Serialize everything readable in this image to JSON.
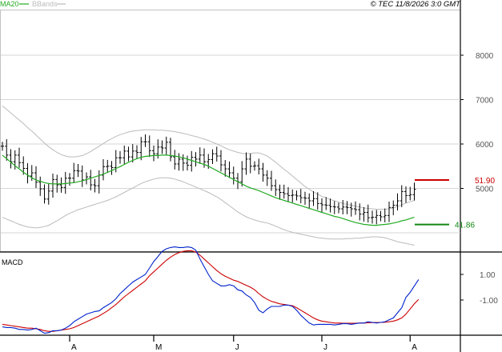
{
  "header": {
    "ma_label": "MA20",
    "bbands_label": "BBands",
    "copyright": "© TEC 11/8/2026 3:0 GMT"
  },
  "colors": {
    "ma": "#22aa22",
    "bbands": "#bbbbbb",
    "price_bar": "#000000",
    "macd_line": "#0022cc",
    "signal_line": "#cc0000",
    "resistance": "#cc0000",
    "support": "#118811",
    "grid": "#c8c8c8",
    "axis": "#000000",
    "tick_text": "#555555"
  },
  "macd_panel": {
    "title": "MACD"
  },
  "chart_data": [
    {
      "type": "ohlc",
      "title": "",
      "xlabel": "",
      "ylabel": "",
      "y_tick_labels": [
        "8000",
        "7000",
        "6000",
        "5000"
      ],
      "y_ticks": [
        80,
        70,
        60,
        50
      ],
      "ylim": [
        37,
        97
      ],
      "grid": true,
      "x_tick_labels": [
        "A",
        "M",
        "J",
        "J",
        "A"
      ],
      "x_tick_index": [
        16,
        36,
        55,
        76,
        97
      ],
      "levels": [
        {
          "label": "51.90",
          "value": 51.9,
          "role": "resistance"
        },
        {
          "label": "41.86",
          "value": 41.86,
          "role": "support"
        }
      ],
      "series": [
        {
          "name": "MA20",
          "kind": "line"
        },
        {
          "name": "BBands",
          "kind": "band"
        },
        {
          "name": "price",
          "kind": "ohlc"
        }
      ],
      "close": [
        59.5,
        57.5,
        56,
        57.5,
        55.8,
        54.5,
        52.8,
        53.5,
        51.4,
        49.9,
        47.6,
        49.4,
        52,
        50.8,
        50.2,
        52.3,
        52.3,
        54,
        53.9,
        51.9,
        52.6,
        50.8,
        50.6,
        53,
        54.9,
        55,
        54.7,
        56.9,
        56.9,
        58.4,
        57.1,
        58.4,
        58.1,
        60.5,
        60.5,
        58.5,
        57.8,
        59.3,
        59.1,
        60.4,
        57.1,
        55.5,
        56.6,
        55.7,
        55.2,
        57,
        56.6,
        57.5,
        56,
        56.5,
        57.8,
        57.3,
        55.3,
        54.4,
        53.5,
        52.3,
        51.5,
        54.4,
        56.6,
        55,
        55.1,
        54.4,
        53,
        52.3,
        50.6,
        49.7,
        49.1,
        48.8,
        48.4,
        48.5,
        48.3,
        47.9,
        47.8,
        47.2,
        47.7,
        46.6,
        46.3,
        46.2,
        45.9,
        45.8,
        45.4,
        45.8,
        45.7,
        45.4,
        45.2,
        44.2,
        44.6,
        43.4,
        43.5,
        43.9,
        43.6,
        43.9,
        45.7,
        46.2,
        47.2,
        49.3,
        48.4,
        48.6,
        49.8
      ],
      "ma20": [
        57.5,
        56.7,
        55.9,
        55.1,
        54.4,
        53.6,
        53.0,
        52.4,
        51.9,
        51.6,
        51.3,
        51.1,
        51.0,
        51.0,
        51.0,
        51.1,
        51.2,
        51.3,
        51.5,
        51.7,
        52.0,
        52.3,
        52.6,
        52.9,
        53.2,
        53.6,
        54.0,
        54.5,
        54.9,
        55.4,
        55.9,
        56.3,
        56.7,
        57.0,
        57.2,
        57.3,
        57.4,
        57.4,
        57.5,
        57.5,
        57.4,
        57.3,
        57.1,
        56.9,
        56.6,
        56.3,
        56.0,
        55.7,
        55.4,
        55.0,
        54.5,
        54.0,
        53.5,
        53.0,
        52.5,
        52.0,
        51.5,
        51.0,
        50.5,
        50.1,
        49.8,
        49.5,
        49.1,
        48.7,
        48.3,
        47.9,
        47.6,
        47.3,
        47.0,
        46.7,
        46.4,
        46.1,
        45.8,
        45.5,
        45.2,
        44.9,
        44.6,
        44.3,
        44.0,
        43.7,
        43.5,
        43.2,
        42.9,
        42.6,
        42.3,
        42.1,
        41.9,
        41.8,
        41.7,
        41.7,
        41.8,
        41.9,
        42.0,
        42.2,
        42.4,
        42.7,
        42.9,
        43.2,
        43.5
      ],
      "bb_upper": [
        68.6,
        67.8,
        67.0,
        66.2,
        65.4,
        64.6,
        63.7,
        62.9,
        62.0,
        61.1,
        60.2,
        59.4,
        58.7,
        58.1,
        57.6,
        57.3,
        57.1,
        57.1,
        57.2,
        57.4,
        57.8,
        58.3,
        58.9,
        59.5,
        60.1,
        60.7,
        61.2,
        61.7,
        62.1,
        62.4,
        62.7,
        62.9,
        63.0,
        63.1,
        63.2,
        63.2,
        63.2,
        63.1,
        63.1,
        63.0,
        62.9,
        62.8,
        62.6,
        62.4,
        62.2,
        61.9,
        61.7,
        61.4,
        61.1,
        60.8,
        60.4,
        60.0,
        59.6,
        59.1,
        58.7,
        58.4,
        58.1,
        57.9,
        57.8,
        57.9,
        58.0,
        58.0,
        57.7,
        57.3,
        56.6,
        55.9,
        55.1,
        54.3,
        53.6,
        52.8,
        52.0,
        51.2,
        50.4,
        49.8,
        49.2,
        48.7,
        48.2,
        47.9,
        47.5,
        47.2,
        46.9,
        46.6,
        46.4,
        46.2,
        46.0,
        45.8,
        45.6,
        45.5,
        45.4,
        45.3,
        45.3,
        45.3,
        45.4,
        45.6,
        45.9,
        46.3,
        46.7,
        47.0,
        47.3
      ],
      "bb_lower": [
        43.5,
        43.1,
        42.7,
        42.3,
        41.9,
        41.6,
        41.3,
        41.2,
        41.1,
        41.2,
        41.4,
        41.7,
        42.2,
        42.7,
        43.3,
        43.9,
        44.4,
        44.8,
        45.2,
        45.5,
        45.8,
        46.1,
        46.4,
        46.7,
        47.0,
        47.3,
        47.7,
        48.1,
        48.6,
        49.1,
        49.6,
        50.1,
        50.6,
        51.1,
        51.5,
        51.8,
        52.1,
        52.3,
        52.4,
        52.4,
        52.3,
        52.1,
        51.8,
        51.5,
        51.1,
        50.7,
        50.3,
        49.9,
        49.5,
        49.1,
        48.6,
        48.1,
        47.5,
        46.8,
        46.1,
        45.4,
        44.7,
        44.1,
        43.6,
        43.2,
        42.9,
        42.6,
        42.4,
        42.2,
        41.9,
        41.5,
        41.1,
        40.7,
        40.4,
        40.1,
        39.9,
        39.7,
        39.5,
        39.3,
        39.1,
        38.9,
        38.8,
        38.7,
        38.6,
        38.6,
        38.6,
        38.6,
        38.7,
        38.7,
        38.8,
        38.8,
        38.9,
        39.0,
        39.1,
        39.1,
        39.0,
        38.9,
        38.6,
        38.3,
        38.0,
        37.8,
        37.6,
        37.4,
        37.2
      ]
    },
    {
      "type": "line",
      "title": "MACD",
      "xlabel": "",
      "ylabel": "",
      "y_tick_labels": [
        "1.00",
        "-1.00"
      ],
      "y_ticks": [
        1.0,
        -1.0
      ],
      "ylim": [
        -5,
        4
      ],
      "grid": false,
      "series": [
        {
          "name": "MACD",
          "values": [
            -3.1,
            -3.15,
            -3.15,
            -3.2,
            -3.3,
            -3.3,
            -3.35,
            -3.3,
            -3.2,
            -3.4,
            -3.6,
            -3.55,
            -3.4,
            -3.4,
            -3.35,
            -3.2,
            -3.0,
            -2.7,
            -2.5,
            -2.3,
            -2.1,
            -2.0,
            -1.9,
            -1.85,
            -1.6,
            -1.4,
            -1.2,
            -0.9,
            -0.5,
            -0.2,
            0.1,
            0.4,
            0.6,
            0.8,
            1.0,
            1.5,
            2.0,
            2.4,
            2.8,
            3.0,
            3.1,
            3.15,
            3.1,
            3.1,
            3.15,
            3.1,
            2.9,
            2.2,
            1.6,
            1.0,
            0.5,
            0.3,
            0.1,
            0.1,
            0.2,
            0.1,
            -0.2,
            -0.3,
            -0.6,
            -0.8,
            -1.2,
            -1.8,
            -2.0,
            -1.7,
            -1.5,
            -1.5,
            -1.5,
            -1.4,
            -1.4,
            -1.5,
            -1.8,
            -2.2,
            -2.5,
            -2.8,
            -2.95,
            -2.9,
            -2.9,
            -2.9,
            -2.9,
            -2.95,
            -2.9,
            -2.85,
            -2.85,
            -2.9,
            -2.85,
            -2.8,
            -2.8,
            -2.7,
            -2.75,
            -2.8,
            -2.75,
            -2.7,
            -2.55,
            -2.4,
            -2.0,
            -1.6,
            -0.8,
            -0.4,
            0.1,
            0.6
          ]
        },
        {
          "name": "Signal",
          "values": [
            -2.9,
            -2.95,
            -3.0,
            -3.05,
            -3.1,
            -3.15,
            -3.2,
            -3.2,
            -3.25,
            -3.3,
            -3.4,
            -3.45,
            -3.45,
            -3.4,
            -3.35,
            -3.3,
            -3.25,
            -3.15,
            -3.0,
            -2.85,
            -2.7,
            -2.55,
            -2.4,
            -2.25,
            -2.05,
            -1.85,
            -1.6,
            -1.35,
            -1.05,
            -0.75,
            -0.5,
            -0.25,
            0.0,
            0.25,
            0.5,
            0.9,
            1.2,
            1.5,
            1.8,
            2.1,
            2.35,
            2.55,
            2.7,
            2.8,
            2.85,
            2.85,
            2.75,
            2.5,
            2.2,
            1.9,
            1.6,
            1.3,
            1.05,
            0.85,
            0.7,
            0.55,
            0.45,
            0.3,
            0.15,
            0.0,
            -0.2,
            -0.5,
            -0.75,
            -0.95,
            -1.1,
            -1.2,
            -1.3,
            -1.35,
            -1.4,
            -1.45,
            -1.6,
            -1.8,
            -2.0,
            -2.2,
            -2.4,
            -2.55,
            -2.65,
            -2.7,
            -2.75,
            -2.8,
            -2.8,
            -2.82,
            -2.82,
            -2.82,
            -2.82,
            -2.8,
            -2.8,
            -2.78,
            -2.76,
            -2.76,
            -2.75,
            -2.74,
            -2.7,
            -2.65,
            -2.55,
            -2.4,
            -2.1,
            -1.7,
            -1.3,
            -0.95
          ]
        }
      ]
    }
  ]
}
